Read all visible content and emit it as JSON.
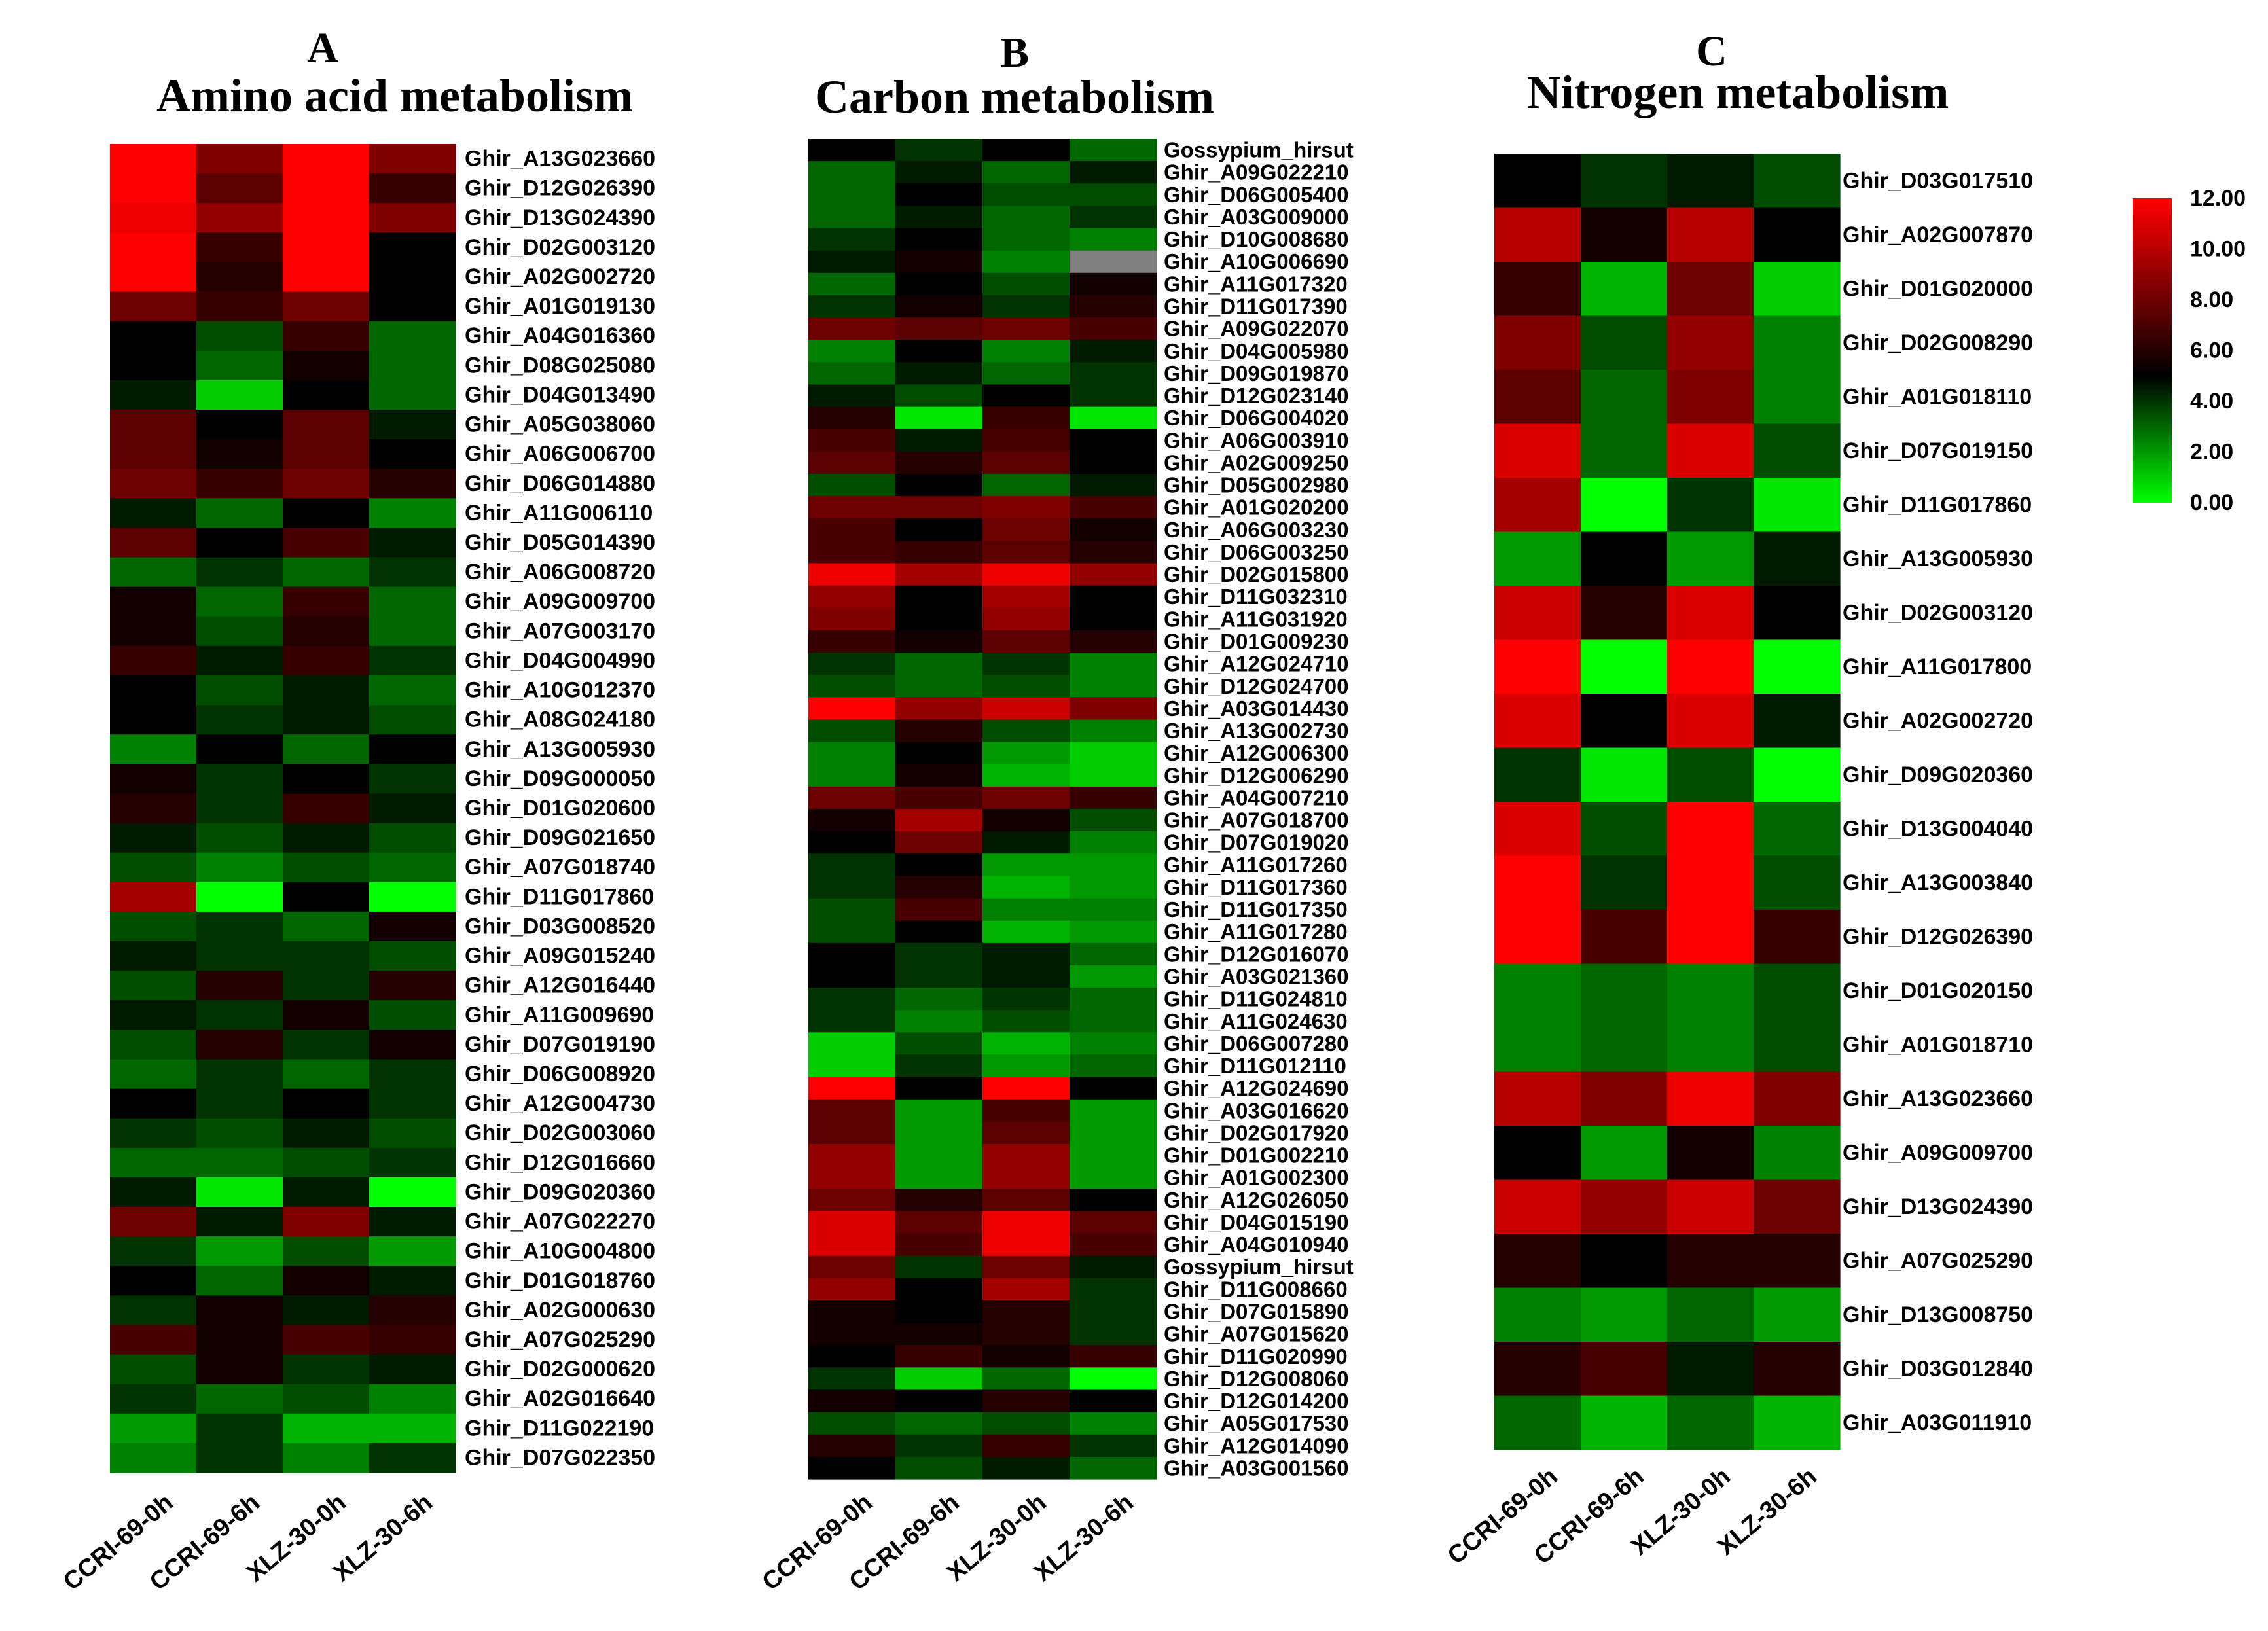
{
  "chart_data": [
    {
      "type": "heatmap",
      "panel": "A",
      "title": "Amino acid metabolism",
      "columns": [
        "CCRI-69-0h",
        "CCRI-69-6h",
        "XLZ-30-0h",
        "XLZ-30-6h"
      ],
      "rows": [
        "Ghir_A13G023660",
        "Ghir_D12G026390",
        "Ghir_D13G024390",
        "Ghir_D02G003120",
        "Ghir_A02G002720",
        "Ghir_A01G019130",
        "Ghir_A04G016360",
        "Ghir_D08G025080",
        "Ghir_D04G013490",
        "Ghir_A05G038060",
        "Ghir_A06G006700",
        "Ghir_D06G014880",
        "Ghir_A11G006110",
        "Ghir_D05G014390",
        "Ghir_A06G008720",
        "Ghir_A09G009700",
        "Ghir_A07G003170",
        "Ghir_D04G004990",
        "Ghir_A10G012370",
        "Ghir_A08G024180",
        "Ghir_A13G005930",
        "Ghir_D09G000050",
        "Ghir_D01G020600",
        "Ghir_D09G021650",
        "Ghir_A07G018740",
        "Ghir_D11G017860",
        "Ghir_D03G008520",
        "Ghir_A09G015240",
        "Ghir_A12G016440",
        "Ghir_A11G009690",
        "Ghir_D07G019190",
        "Ghir_D06G008920",
        "Ghir_A12G004730",
        "Ghir_D02G003060",
        "Ghir_D12G016660",
        "Ghir_D09G020360",
        "Ghir_A07G022270",
        "Ghir_A10G004800",
        "Ghir_D01G018760",
        "Ghir_A02G000630",
        "Ghir_A07G025290",
        "Ghir_D02G000620",
        "Ghir_A02G016640",
        "Ghir_D11G022190",
        "Ghir_D07G022350"
      ],
      "values": [
        [
          12,
          8.5,
          12,
          8.5
        ],
        [
          12,
          7.5,
          12,
          6.5
        ],
        [
          11.5,
          9,
          12,
          8.5
        ],
        [
          12,
          6.5,
          12,
          5
        ],
        [
          12,
          6,
          12,
          5
        ],
        [
          8,
          6.5,
          8,
          5
        ],
        [
          5,
          3.5,
          6.5,
          3
        ],
        [
          5,
          3,
          5.5,
          3
        ],
        [
          4.5,
          1,
          5,
          3
        ],
        [
          7.5,
          5,
          7.5,
          4.5
        ],
        [
          7.5,
          5.5,
          7.5,
          5
        ],
        [
          8,
          6.5,
          8,
          6
        ],
        [
          4.5,
          3,
          5,
          2.5
        ],
        [
          7.5,
          5,
          7,
          4.5
        ],
        [
          3,
          4,
          3,
          4
        ],
        [
          5.5,
          3,
          6.5,
          3
        ],
        [
          5.5,
          3.5,
          6,
          3
        ],
        [
          6.5,
          4.5,
          6.5,
          4
        ],
        [
          5,
          3.5,
          4.5,
          3
        ],
        [
          5,
          4,
          4.5,
          3.5
        ],
        [
          2.5,
          5,
          3,
          5
        ],
        [
          5.5,
          4,
          5,
          4
        ],
        [
          6,
          4,
          6.5,
          4.5
        ],
        [
          4.5,
          3.5,
          4.5,
          3.5
        ],
        [
          3.5,
          2.5,
          3.5,
          3
        ],
        [
          9.5,
          0,
          5,
          0
        ],
        [
          3.5,
          4,
          3,
          5.5
        ],
        [
          4.5,
          4,
          4,
          3.5
        ],
        [
          3.5,
          6,
          4,
          6
        ],
        [
          4.5,
          4,
          5.5,
          3.5
        ],
        [
          3.5,
          6,
          4,
          5.5
        ],
        [
          3,
          4,
          3,
          4
        ],
        [
          5,
          4,
          5,
          4
        ],
        [
          4,
          3.5,
          4.5,
          3.5
        ],
        [
          3,
          3,
          3.5,
          4
        ],
        [
          4.5,
          0.5,
          4.5,
          0
        ],
        [
          8,
          4.5,
          8.5,
          4.5
        ],
        [
          4,
          2,
          3.5,
          2
        ],
        [
          5,
          3,
          5.5,
          4.5
        ],
        [
          4,
          5.5,
          4.5,
          6
        ],
        [
          7,
          5.5,
          7,
          6.5
        ],
        [
          3.5,
          5.5,
          4,
          4.5
        ],
        [
          4,
          3,
          3.5,
          2.5
        ],
        [
          2,
          4,
          1.5,
          1.5
        ],
        [
          2.5,
          4,
          2.5,
          4
        ]
      ]
    },
    {
      "type": "heatmap",
      "panel": "B",
      "title": "Carbon metabolism",
      "columns": [
        "CCRI-69-0h",
        "CCRI-69-6h",
        "XLZ-30-0h",
        "XLZ-30-6h"
      ],
      "rows": [
        "Gossypium_hirsut",
        "Ghir_A09G022210",
        "Ghir_D06G005400",
        "Ghir_A03G009000",
        "Ghir_D10G008680",
        "Ghir_A10G006690",
        "Ghir_A11G017320",
        "Ghir_D11G017390",
        "Ghir_A09G022070",
        "Ghir_D04G005980",
        "Ghir_D09G019870",
        "Ghir_D12G023140",
        "Ghir_D06G004020",
        "Ghir_A06G003910",
        "Ghir_A02G009250",
        "Ghir_D05G002980",
        "Ghir_A01G020200",
        "Ghir_A06G003230",
        "Ghir_D06G003250",
        "Ghir_D02G015800",
        "Ghir_D11G032310",
        "Ghir_A11G031920",
        "Ghir_D01G009230",
        "Ghir_A12G024710",
        "Ghir_D12G024700",
        "Ghir_A03G014430",
        "Ghir_A13G002730",
        "Ghir_A12G006300",
        "Ghir_D12G006290",
        "Ghir_A04G007210",
        "Ghir_A07G018700",
        "Ghir_D07G019020",
        "Ghir_A11G017260",
        "Ghir_D11G017360",
        "Ghir_D11G017350",
        "Ghir_A11G017280",
        "Ghir_D12G016070",
        "Ghir_A03G021360",
        "Ghir_D11G024810",
        "Ghir_A11G024630",
        "Ghir_D06G007280",
        "Ghir_D11G012110",
        "Ghir_A12G024690",
        "Ghir_A03G016620",
        "Ghir_D02G017920",
        "Ghir_D01G002210",
        "Ghir_A01G002300",
        "Ghir_A12G026050",
        "Ghir_D04G015190",
        "Ghir_A04G010940",
        "Gossypium_hirsut",
        "Ghir_D11G008660",
        "Ghir_D07G015890",
        "Ghir_A07G015620",
        "Ghir_D11G020990",
        "Ghir_D12G008060",
        "Ghir_D12G014200",
        "Ghir_A05G017530",
        "Ghir_A12G014090",
        "Ghir_A03G001560"
      ],
      "values": [
        [
          5,
          4,
          5,
          3
        ],
        [
          3,
          4.5,
          3,
          4.5
        ],
        [
          3,
          5,
          3.5,
          3.5
        ],
        [
          3,
          4.5,
          3,
          4
        ],
        [
          4,
          5,
          3,
          2.5
        ],
        [
          4.5,
          5.5,
          2.5,
          null
        ],
        [
          3,
          5,
          3.5,
          5.5
        ],
        [
          4,
          5.5,
          4,
          6
        ],
        [
          8,
          7.5,
          8,
          7
        ],
        [
          2.5,
          5,
          2.5,
          4.5
        ],
        [
          3,
          4.5,
          3,
          4
        ],
        [
          4.5,
          3.5,
          5,
          4
        ],
        [
          6,
          0.5,
          6.5,
          0.5
        ],
        [
          7,
          4.5,
          7,
          5
        ],
        [
          7.5,
          6,
          7.5,
          5
        ],
        [
          3.5,
          5,
          3,
          4.5
        ],
        [
          8,
          8,
          8.5,
          7
        ],
        [
          7,
          5,
          8,
          5.5
        ],
        [
          7,
          6.5,
          7.5,
          6
        ],
        [
          11.5,
          9.5,
          11.5,
          9
        ],
        [
          9,
          5,
          9.5,
          5
        ],
        [
          8.5,
          5,
          9,
          5
        ],
        [
          6.5,
          5.5,
          7.5,
          6
        ],
        [
          4,
          3,
          4,
          2.5
        ],
        [
          3.5,
          3,
          3.5,
          2.5
        ],
        [
          12,
          9,
          10.5,
          8.5
        ],
        [
          3.5,
          6,
          3.5,
          2.5
        ],
        [
          2.5,
          5,
          2,
          1
        ],
        [
          2.5,
          5.5,
          1.5,
          1
        ],
        [
          8,
          7,
          8,
          6.5
        ],
        [
          5.5,
          9.5,
          5.5,
          3.5
        ],
        [
          5,
          8,
          4.5,
          2.5
        ],
        [
          4,
          5,
          2,
          2
        ],
        [
          4,
          6,
          1.5,
          2
        ],
        [
          3.5,
          7,
          2.5,
          2.5
        ],
        [
          3.5,
          5,
          1.5,
          2
        ],
        [
          5,
          4,
          4.5,
          3
        ],
        [
          5,
          4,
          4.5,
          2
        ],
        [
          4,
          3,
          4,
          3
        ],
        [
          4,
          2.5,
          3.5,
          3
        ],
        [
          1,
          3.5,
          1.5,
          2.5
        ],
        [
          1,
          4,
          2,
          3
        ],
        [
          12,
          5,
          12,
          5
        ],
        [
          7.5,
          2,
          7,
          2
        ],
        [
          7.5,
          2,
          7.5,
          2
        ],
        [
          9,
          2,
          9,
          2
        ],
        [
          9,
          2,
          9,
          2
        ],
        [
          8,
          6,
          7.5,
          5
        ],
        [
          11,
          7.5,
          11.5,
          7.5
        ],
        [
          11,
          7,
          11.5,
          7
        ],
        [
          8,
          4,
          8,
          4.5
        ],
        [
          9,
          5,
          9.5,
          4
        ],
        [
          5.5,
          5,
          6,
          4
        ],
        [
          5.5,
          5.5,
          6,
          4
        ],
        [
          5,
          6.5,
          5.5,
          6.5
        ],
        [
          4,
          1,
          3,
          0
        ],
        [
          5.5,
          5,
          6,
          5
        ],
        [
          3.5,
          3,
          3.5,
          2.5
        ],
        [
          6,
          4,
          6.5,
          4
        ],
        [
          5,
          3.5,
          4.5,
          3
        ]
      ]
    },
    {
      "type": "heatmap",
      "panel": "C",
      "title": "Nitrogen metabolism",
      "columns": [
        "CCRI-69-0h",
        "CCRI-69-6h",
        "XLZ-30-0h",
        "XLZ-30-6h"
      ],
      "rows": [
        "Ghir_D03G017510",
        "Ghir_A02G007870",
        "Ghir_D01G020000",
        "Ghir_D02G008290",
        "Ghir_A01G018110",
        "Ghir_D07G019150",
        "Ghir_D11G017860",
        "Ghir_A13G005930",
        "Ghir_D02G003120",
        "Ghir_A11G017800",
        "Ghir_A02G002720",
        "Ghir_D09G020360",
        "Ghir_D13G004040",
        "Ghir_A13G003840",
        "Ghir_D12G026390",
        "Ghir_D01G020150",
        "Ghir_A01G018710",
        "Ghir_A13G023660",
        "Ghir_A09G009700",
        "Ghir_D13G024390",
        "Ghir_A07G025290",
        "Ghir_D13G008750",
        "Ghir_D03G012840",
        "Ghir_A03G011910"
      ],
      "values": [
        [
          5,
          4,
          4.5,
          3.5
        ],
        [
          10,
          5.5,
          10,
          5
        ],
        [
          6.5,
          1.5,
          8,
          1
        ],
        [
          8.5,
          3.5,
          9,
          2.5
        ],
        [
          7.5,
          3,
          8.5,
          2.5
        ],
        [
          11,
          3,
          11,
          3.5
        ],
        [
          9.5,
          0,
          4,
          0.5
        ],
        [
          2,
          5,
          2,
          4.5
        ],
        [
          10.5,
          6,
          11,
          5
        ],
        [
          12,
          0,
          12,
          0
        ],
        [
          11,
          5,
          11,
          4.5
        ],
        [
          4,
          0.5,
          3.5,
          0
        ],
        [
          11,
          3.5,
          12,
          3
        ],
        [
          12,
          4,
          12,
          3.5
        ],
        [
          12,
          7,
          12,
          6.5
        ],
        [
          2.5,
          3,
          2.5,
          3.5
        ],
        [
          2.5,
          3,
          2.5,
          3.5
        ],
        [
          10,
          8.5,
          11.5,
          8.5
        ],
        [
          5,
          2,
          5.5,
          2.5
        ],
        [
          10.5,
          9,
          10.5,
          8
        ],
        [
          6,
          5,
          6,
          6
        ],
        [
          2.5,
          2,
          3,
          2
        ],
        [
          6,
          7,
          4.5,
          6
        ],
        [
          3,
          1.5,
          3,
          1.5
        ]
      ]
    }
  ],
  "colorbar": {
    "ticks": [
      "12.00",
      "10.00",
      "8.00",
      "6.00",
      "4.00",
      "2.00",
      "0.00"
    ],
    "min": 0,
    "max": 12,
    "midpoint": 5,
    "low_color": "#00ff00",
    "mid_color": "#000000",
    "high_color": "#ff0000",
    "missing_color": "#808080"
  }
}
